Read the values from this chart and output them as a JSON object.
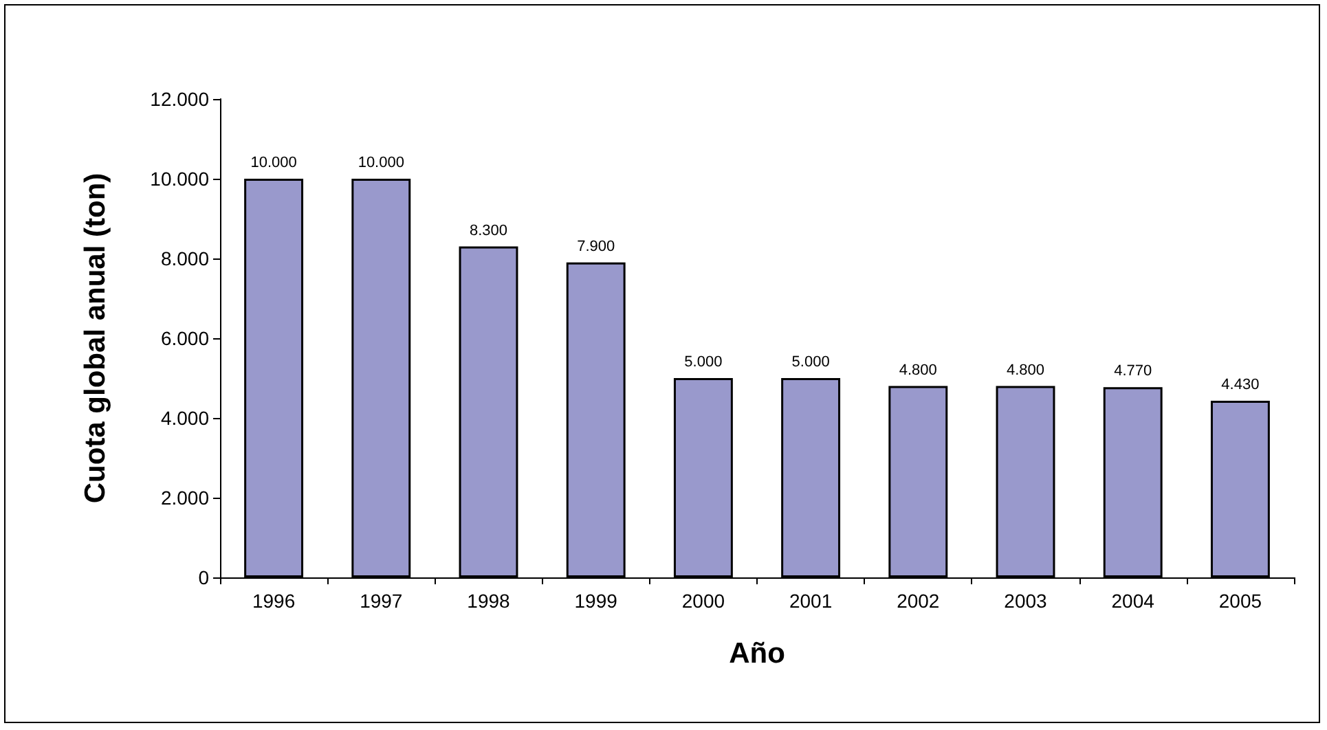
{
  "chart_data": {
    "type": "bar",
    "xlabel": "Año",
    "ylabel": "Cuota global anual (ton)",
    "categories": [
      "1996",
      "1997",
      "1998",
      "1999",
      "2000",
      "2001",
      "2002",
      "2003",
      "2004",
      "2005"
    ],
    "values": [
      10000,
      10000,
      8300,
      7900,
      5000,
      5000,
      4800,
      4800,
      4770,
      4430
    ],
    "value_labels": [
      "10.000",
      "10.000",
      "8.300",
      "7.900",
      "5.000",
      "5.000",
      "4.800",
      "4.800",
      "4.770",
      "4.430"
    ],
    "color": "#9999cc",
    "ylim": [
      0,
      12000
    ],
    "yticks": [
      {
        "value": 0,
        "label": "0"
      },
      {
        "value": 2000,
        "label": "2.000"
      },
      {
        "value": 4000,
        "label": "4.000"
      },
      {
        "value": 6000,
        "label": "6.000"
      },
      {
        "value": 8000,
        "label": "8.000"
      },
      {
        "value": 10000,
        "label": "10.000"
      },
      {
        "value": 12000,
        "label": "12.000"
      }
    ],
    "grid": false
  }
}
